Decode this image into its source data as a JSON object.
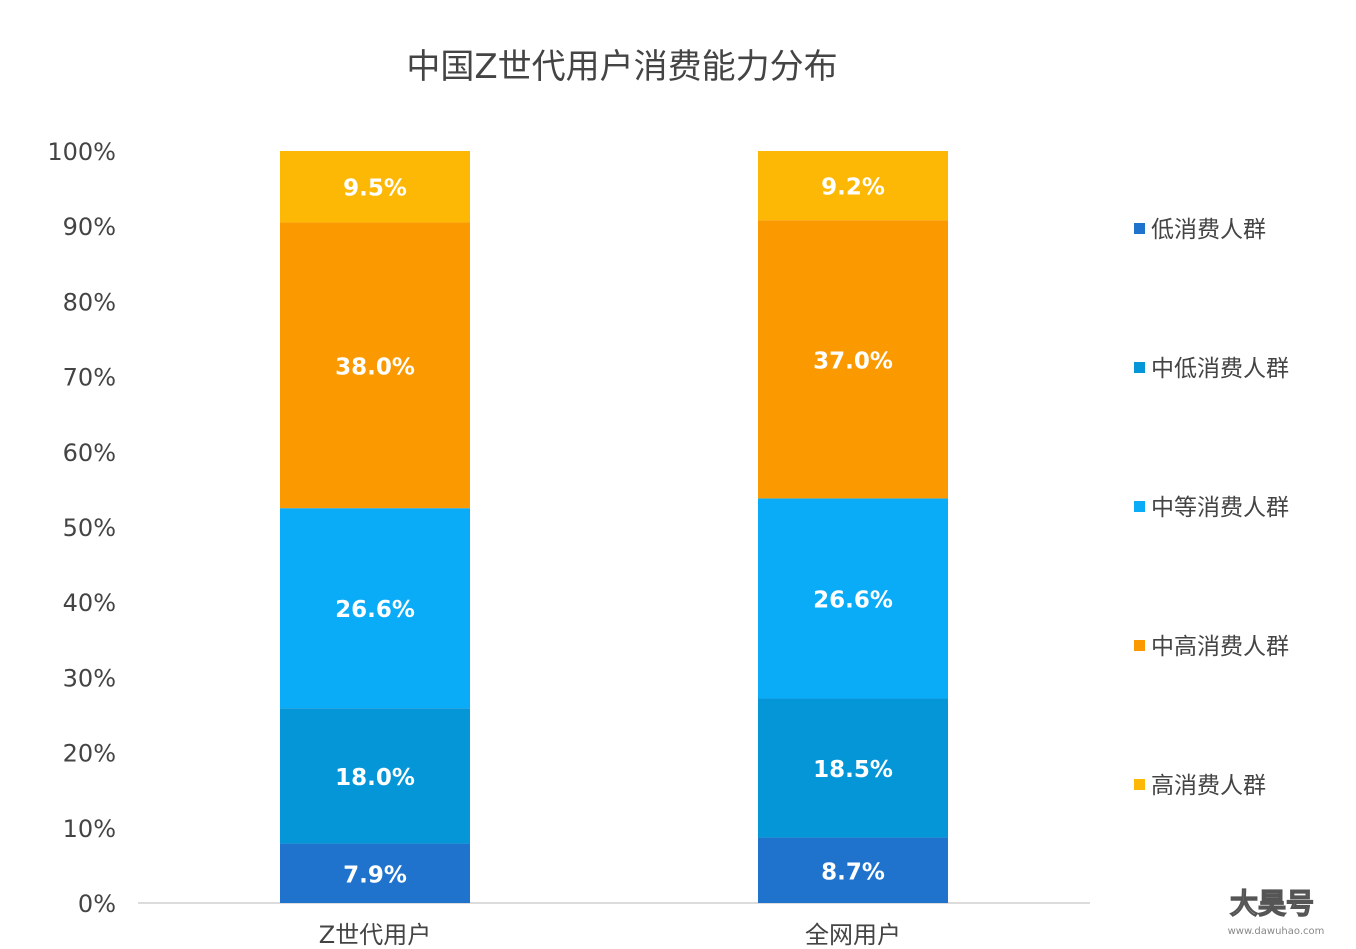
{
  "chart_data": {
    "type": "bar",
    "stacked": true,
    "title": "中国Z世代用户消费能力分布",
    "categories": [
      "Z世代用户",
      "全网用户"
    ],
    "ylim": [
      0,
      100
    ],
    "y_ticks": [
      "0%",
      "10%",
      "20%",
      "30%",
      "40%",
      "50%",
      "60%",
      "70%",
      "80%",
      "90%",
      "100%"
    ],
    "legend_position": "right",
    "grid": false,
    "series": [
      {
        "name": "低消费人群",
        "values": [
          7.9,
          8.7
        ],
        "labels": [
          "7.9%",
          "8.7%"
        ],
        "color": "#1f73cc"
      },
      {
        "name": "中低消费人群",
        "values": [
          18.0,
          18.5
        ],
        "labels": [
          "18.0%",
          "18.5%"
        ],
        "color": "#0596d8"
      },
      {
        "name": "中等消费人群",
        "values": [
          26.6,
          26.6
        ],
        "labels": [
          "26.6%",
          "26.6%"
        ],
        "color": "#0aabf7"
      },
      {
        "name": "中高消费人群",
        "values": [
          38.0,
          37.0
        ],
        "labels": [
          "38.0%",
          "37.0%"
        ],
        "color": "#fb9a00"
      },
      {
        "name": "高消费人群",
        "values": [
          9.5,
          9.2
        ],
        "labels": [
          "9.5%",
          "9.2%"
        ],
        "color": "#fdb705"
      }
    ]
  },
  "watermark": {
    "text": "大昊号",
    "url": "www.dawuhao.com"
  }
}
